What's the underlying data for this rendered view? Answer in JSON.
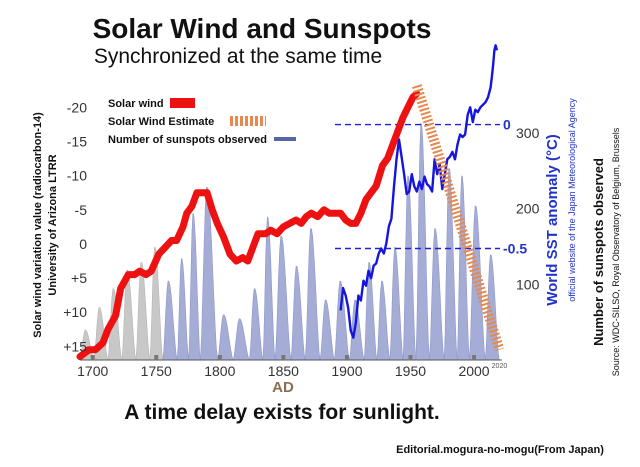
{
  "title": "Solar Wind and Sunspots",
  "subtitle": "Synchronized at the same time",
  "footer_statement": "A time delay exists for sunlight.",
  "credit": "Editorial.mogura-no-mogu(From Japan)",
  "chart_data": {
    "type": "line",
    "xlabel": "AD",
    "x_ticks": [
      1700,
      1750,
      1800,
      1850,
      1900,
      1950,
      2000
    ],
    "x_end_label": "2020",
    "xlim": [
      1690,
      2022
    ],
    "grid": false,
    "legend_position": "top-left",
    "left_axis": {
      "label_line1": "Solar wind variation value (radiocarbon-14)",
      "label_line2": "University of Arizona LTRR",
      "inverted": true,
      "range": [
        17,
        -24
      ],
      "ticks": [
        "-20",
        "-15",
        "-10",
        "-5",
        "0",
        "+5",
        "+10",
        "+15"
      ],
      "tick_values": [
        -20,
        -15,
        -10,
        -5,
        0,
        5,
        10,
        15
      ]
    },
    "sunspot_axis": {
      "label": "Number of sunspots observed",
      "source": "Source: WDC-SILSO, Royal Observatory of Belgium, Brussels",
      "range": [
        0,
        370
      ],
      "ticks": [
        "100",
        "200",
        "300"
      ],
      "tick_values": [
        100,
        200,
        300
      ]
    },
    "sst_axis": {
      "label": "World SST anomaly (°C)",
      "source": "official website of the Japan Meteorological Agency",
      "ticks": [
        "0",
        "-0.5"
      ],
      "tick_values": [
        0,
        -0.5
      ],
      "range": [
        -0.95,
        0.18
      ]
    },
    "series": [
      {
        "name": "Solar wind",
        "axis": "left",
        "color": "#ee1111",
        "x": [
          1690,
          1697,
          1702,
          1708,
          1712,
          1718,
          1722,
          1728,
          1733,
          1737,
          1742,
          1746,
          1752,
          1757,
          1762,
          1766,
          1771,
          1774,
          1778,
          1782,
          1786,
          1790,
          1794,
          1798,
          1803,
          1808,
          1813,
          1818,
          1822,
          1826,
          1830,
          1836,
          1840,
          1845,
          1850,
          1855,
          1860,
          1864,
          1868,
          1872,
          1877,
          1882,
          1886,
          1890,
          1895,
          1899,
          1903,
          1907,
          1911,
          1915,
          1919,
          1923,
          1928,
          1932,
          1936,
          1940,
          1944,
          1948,
          1952,
          1955
        ],
        "values": [
          16.5,
          15.5,
          15.5,
          14.5,
          12.5,
          10.5,
          6.5,
          4.5,
          4.5,
          4.0,
          4.5,
          4.0,
          1.5,
          0.5,
          -0.5,
          -0.5,
          -2.5,
          -4.5,
          -5.5,
          -7.5,
          -7.5,
          -7.5,
          -5.0,
          -3.0,
          -1.0,
          1.5,
          2.5,
          2.0,
          2.5,
          0.5,
          -1.5,
          -1.5,
          -2.0,
          -1.5,
          -2.5,
          -3.0,
          -3.5,
          -3.0,
          -4.0,
          -4.5,
          -4.0,
          -5.0,
          -4.5,
          -4.5,
          -4.5,
          -3.5,
          -3.0,
          -3.0,
          -4.5,
          -6.5,
          -7.5,
          -8.5,
          -11.5,
          -12.5,
          -14.5,
          -16.5,
          -18.5,
          -20.0,
          -21.5,
          -22.0
        ]
      },
      {
        "name": "Solar Wind Estimate",
        "axis": "left",
        "color": "#e5894f",
        "x": [
          1955,
          2020
        ],
        "values": [
          -22.0,
          15.5
        ]
      },
      {
        "name": "Number of sunspots observed",
        "axis": "sunspot",
        "color": "#a5acd6",
        "cycle_start_years": [
          1690,
          1701,
          1712,
          1723,
          1734,
          1745,
          1755.2,
          1766.5,
          1775.5,
          1784.7,
          1798.3,
          1810.6,
          1823.3,
          1833.9,
          1843.5,
          1856,
          1867.2,
          1878.9,
          1890.2,
          1902,
          1913.6,
          1923.6,
          1933.8,
          1944.2,
          1954.3,
          1964.9,
          1976.5,
          1986.8,
          1996.4,
          2008.9,
          2019.9
        ],
        "cycle_peaks": [
          40,
          70,
          95,
          120,
          130,
          150,
          105,
          135,
          195,
          230,
          60,
          55,
          95,
          190,
          165,
          125,
          175,
          80,
          105,
          80,
          130,
          105,
          150,
          245,
          315,
          175,
          255,
          245,
          205,
          140
        ]
      },
      {
        "name": "World SST anomaly",
        "axis": "sst",
        "color": "#1515dd",
        "x": [
          1895,
          1897,
          1899,
          1901,
          1903,
          1905,
          1907,
          1909,
          1911,
          1913,
          1915,
          1917,
          1919,
          1921,
          1923,
          1925,
          1927,
          1929,
          1931,
          1933,
          1935,
          1937,
          1939,
          1941,
          1943,
          1945,
          1947,
          1949,
          1951,
          1953,
          1955,
          1957,
          1959,
          1961,
          1963,
          1965,
          1967,
          1969,
          1971,
          1973,
          1975,
          1977,
          1979,
          1981,
          1983,
          1985,
          1987,
          1989,
          1991,
          1993,
          1995,
          1997,
          1999,
          2001,
          2003,
          2005,
          2007,
          2009,
          2011,
          2013,
          2014,
          2015,
          2016,
          2017,
          2018
        ],
        "values": [
          -0.75,
          -0.66,
          -0.69,
          -0.74,
          -0.83,
          -0.86,
          -0.8,
          -0.69,
          -0.71,
          -0.63,
          -0.65,
          -0.59,
          -0.62,
          -0.57,
          -0.56,
          -0.52,
          -0.5,
          -0.52,
          -0.48,
          -0.41,
          -0.38,
          -0.25,
          -0.14,
          -0.06,
          -0.13,
          -0.2,
          -0.28,
          -0.27,
          -0.2,
          -0.25,
          -0.27,
          -0.23,
          -0.26,
          -0.21,
          -0.24,
          -0.25,
          -0.27,
          -0.14,
          -0.2,
          -0.16,
          -0.26,
          -0.2,
          -0.14,
          -0.13,
          -0.11,
          -0.14,
          -0.08,
          -0.04,
          -0.05,
          -0.04,
          0.04,
          0.07,
          0.01,
          0.06,
          0.05,
          0.07,
          0.08,
          0.09,
          0.11,
          0.15,
          0.19,
          0.24,
          0.3,
          0.32,
          0.3
        ]
      }
    ],
    "reference_lines": [
      {
        "axis": "sst",
        "value": 0,
        "color": "#2222cc"
      },
      {
        "axis": "sst",
        "value": -0.5,
        "color": "#2222cc"
      }
    ]
  }
}
